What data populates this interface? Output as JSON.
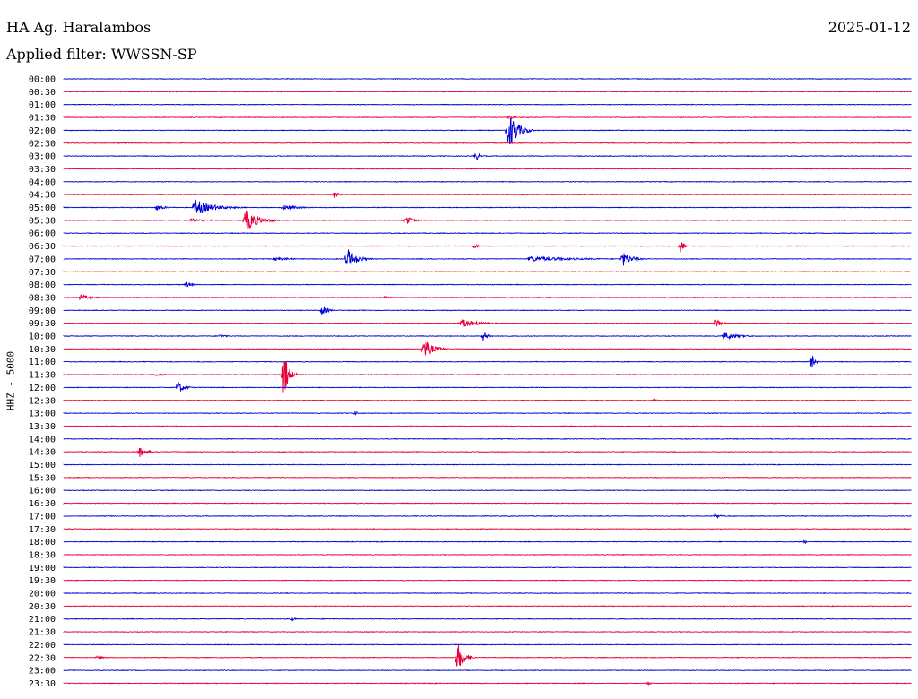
{
  "header": {
    "station": "HA Ag. Haralambos",
    "date": "2025-01-12",
    "filter": "Applied filter: WWSSN-SP",
    "channel_label": "HHZ - 5000"
  },
  "colors": {
    "blue": "#0000d8",
    "red": "#e8003a"
  },
  "chart_data": {
    "type": "line",
    "title": "HA Ag. Haralambos",
    "subtitle": "Applied filter: WWSSN-SP",
    "ylabel": "HHZ - 5000",
    "xlabel": "",
    "rows": [
      {
        "time": "00:00",
        "color": "blue",
        "events": []
      },
      {
        "time": "00:30",
        "color": "red",
        "events": []
      },
      {
        "time": "01:00",
        "color": "blue",
        "events": []
      },
      {
        "time": "01:30",
        "color": "red",
        "events": [
          {
            "at": 0.527,
            "amp": 4,
            "dur": 0.01
          }
        ]
      },
      {
        "time": "02:00",
        "color": "blue",
        "events": [
          {
            "at": 0.525,
            "amp": 22,
            "dur": 0.03
          }
        ]
      },
      {
        "time": "02:30",
        "color": "red",
        "events": [
          {
            "at": 0.065,
            "amp": 1,
            "dur": 0.03
          }
        ]
      },
      {
        "time": "03:00",
        "color": "blue",
        "events": [
          {
            "at": 0.487,
            "amp": 5,
            "dur": 0.01
          }
        ]
      },
      {
        "time": "03:30",
        "color": "red",
        "events": []
      },
      {
        "time": "04:00",
        "color": "blue",
        "events": []
      },
      {
        "time": "04:30",
        "color": "red",
        "events": [
          {
            "at": 0.32,
            "amp": 4,
            "dur": 0.015
          }
        ]
      },
      {
        "time": "05:00",
        "color": "blue",
        "events": [
          {
            "at": 0.155,
            "amp": 9,
            "dur": 0.06
          },
          {
            "at": 0.11,
            "amp": 3,
            "dur": 0.03
          },
          {
            "at": 0.26,
            "amp": 3,
            "dur": 0.05
          }
        ]
      },
      {
        "time": "05:30",
        "color": "red",
        "events": [
          {
            "at": 0.215,
            "amp": 12,
            "dur": 0.04
          },
          {
            "at": 0.405,
            "amp": 6,
            "dur": 0.02
          },
          {
            "at": 0.15,
            "amp": 2,
            "dur": 0.06
          }
        ]
      },
      {
        "time": "06:00",
        "color": "blue",
        "events": []
      },
      {
        "time": "06:30",
        "color": "red",
        "events": [
          {
            "at": 0.729,
            "amp": 10,
            "dur": 0.008
          },
          {
            "at": 0.485,
            "amp": 3,
            "dur": 0.01
          }
        ]
      },
      {
        "time": "07:00",
        "color": "blue",
        "events": [
          {
            "at": 0.335,
            "amp": 12,
            "dur": 0.03
          },
          {
            "at": 0.66,
            "amp": 8,
            "dur": 0.03
          },
          {
            "at": 0.55,
            "amp": 3,
            "dur": 0.14
          },
          {
            "at": 0.25,
            "amp": 2,
            "dur": 0.06
          }
        ]
      },
      {
        "time": "07:30",
        "color": "red",
        "events": []
      },
      {
        "time": "08:00",
        "color": "blue",
        "events": [
          {
            "at": 0.145,
            "amp": 3,
            "dur": 0.02
          }
        ]
      },
      {
        "time": "08:30",
        "color": "red",
        "events": [
          {
            "at": 0.02,
            "amp": 3,
            "dur": 0.04
          },
          {
            "at": 0.38,
            "amp": 2,
            "dur": 0.01
          }
        ]
      },
      {
        "time": "09:00",
        "color": "blue",
        "events": [
          {
            "at": 0.305,
            "amp": 5,
            "dur": 0.02
          }
        ]
      },
      {
        "time": "09:30",
        "color": "red",
        "events": [
          {
            "at": 0.47,
            "amp": 5,
            "dur": 0.05
          },
          {
            "at": 0.77,
            "amp": 5,
            "dur": 0.015
          }
        ]
      },
      {
        "time": "10:00",
        "color": "blue",
        "events": [
          {
            "at": 0.495,
            "amp": 6,
            "dur": 0.015
          },
          {
            "at": 0.78,
            "amp": 4,
            "dur": 0.05
          },
          {
            "at": 0.185,
            "amp": 2,
            "dur": 0.02
          }
        ]
      },
      {
        "time": "10:30",
        "color": "red",
        "events": [
          {
            "at": 0.425,
            "amp": 11,
            "dur": 0.03
          }
        ]
      },
      {
        "time": "11:00",
        "color": "blue",
        "events": [
          {
            "at": 0.883,
            "amp": 8,
            "dur": 0.01
          }
        ]
      },
      {
        "time": "11:30",
        "color": "red",
        "events": [
          {
            "at": 0.26,
            "amp": 26,
            "dur": 0.015
          },
          {
            "at": 0.11,
            "amp": 2,
            "dur": 0.02
          }
        ]
      },
      {
        "time": "12:00",
        "color": "blue",
        "events": [
          {
            "at": 0.135,
            "amp": 7,
            "dur": 0.02
          }
        ]
      },
      {
        "time": "12:30",
        "color": "red",
        "events": [
          {
            "at": 0.697,
            "amp": 2,
            "dur": 0.01
          }
        ]
      },
      {
        "time": "13:00",
        "color": "blue",
        "events": [
          {
            "at": 0.345,
            "amp": 3,
            "dur": 0.005
          }
        ]
      },
      {
        "time": "13:30",
        "color": "red",
        "events": []
      },
      {
        "time": "14:00",
        "color": "blue",
        "events": []
      },
      {
        "time": "14:30",
        "color": "red",
        "events": [
          {
            "at": 0.09,
            "amp": 6,
            "dur": 0.02
          }
        ]
      },
      {
        "time": "15:00",
        "color": "blue",
        "events": []
      },
      {
        "time": "15:30",
        "color": "red",
        "events": []
      },
      {
        "time": "16:00",
        "color": "blue",
        "events": []
      },
      {
        "time": "16:30",
        "color": "red",
        "events": []
      },
      {
        "time": "17:00",
        "color": "blue",
        "events": [
          {
            "at": 0.77,
            "amp": 2,
            "dur": 0.02
          }
        ]
      },
      {
        "time": "17:30",
        "color": "red",
        "events": []
      },
      {
        "time": "18:00",
        "color": "blue",
        "events": [
          {
            "at": 0.875,
            "amp": 2,
            "dur": 0.004
          }
        ]
      },
      {
        "time": "18:30",
        "color": "red",
        "events": []
      },
      {
        "time": "19:00",
        "color": "blue",
        "events": []
      },
      {
        "time": "19:30",
        "color": "red",
        "events": []
      },
      {
        "time": "20:00",
        "color": "blue",
        "events": []
      },
      {
        "time": "20:30",
        "color": "red",
        "events": []
      },
      {
        "time": "21:00",
        "color": "blue",
        "events": [
          {
            "at": 0.27,
            "amp": 2,
            "dur": 0.01
          }
        ]
      },
      {
        "time": "21:30",
        "color": "red",
        "events": []
      },
      {
        "time": "22:00",
        "color": "blue",
        "events": []
      },
      {
        "time": "22:30",
        "color": "red",
        "events": [
          {
            "at": 0.465,
            "amp": 17,
            "dur": 0.02
          },
          {
            "at": 0.04,
            "amp": 2,
            "dur": 0.02
          }
        ]
      },
      {
        "time": "23:00",
        "color": "blue",
        "events": []
      },
      {
        "time": "23:30",
        "color": "red",
        "events": [
          {
            "at": 0.69,
            "amp": 2,
            "dur": 0.01
          }
        ]
      }
    ]
  }
}
